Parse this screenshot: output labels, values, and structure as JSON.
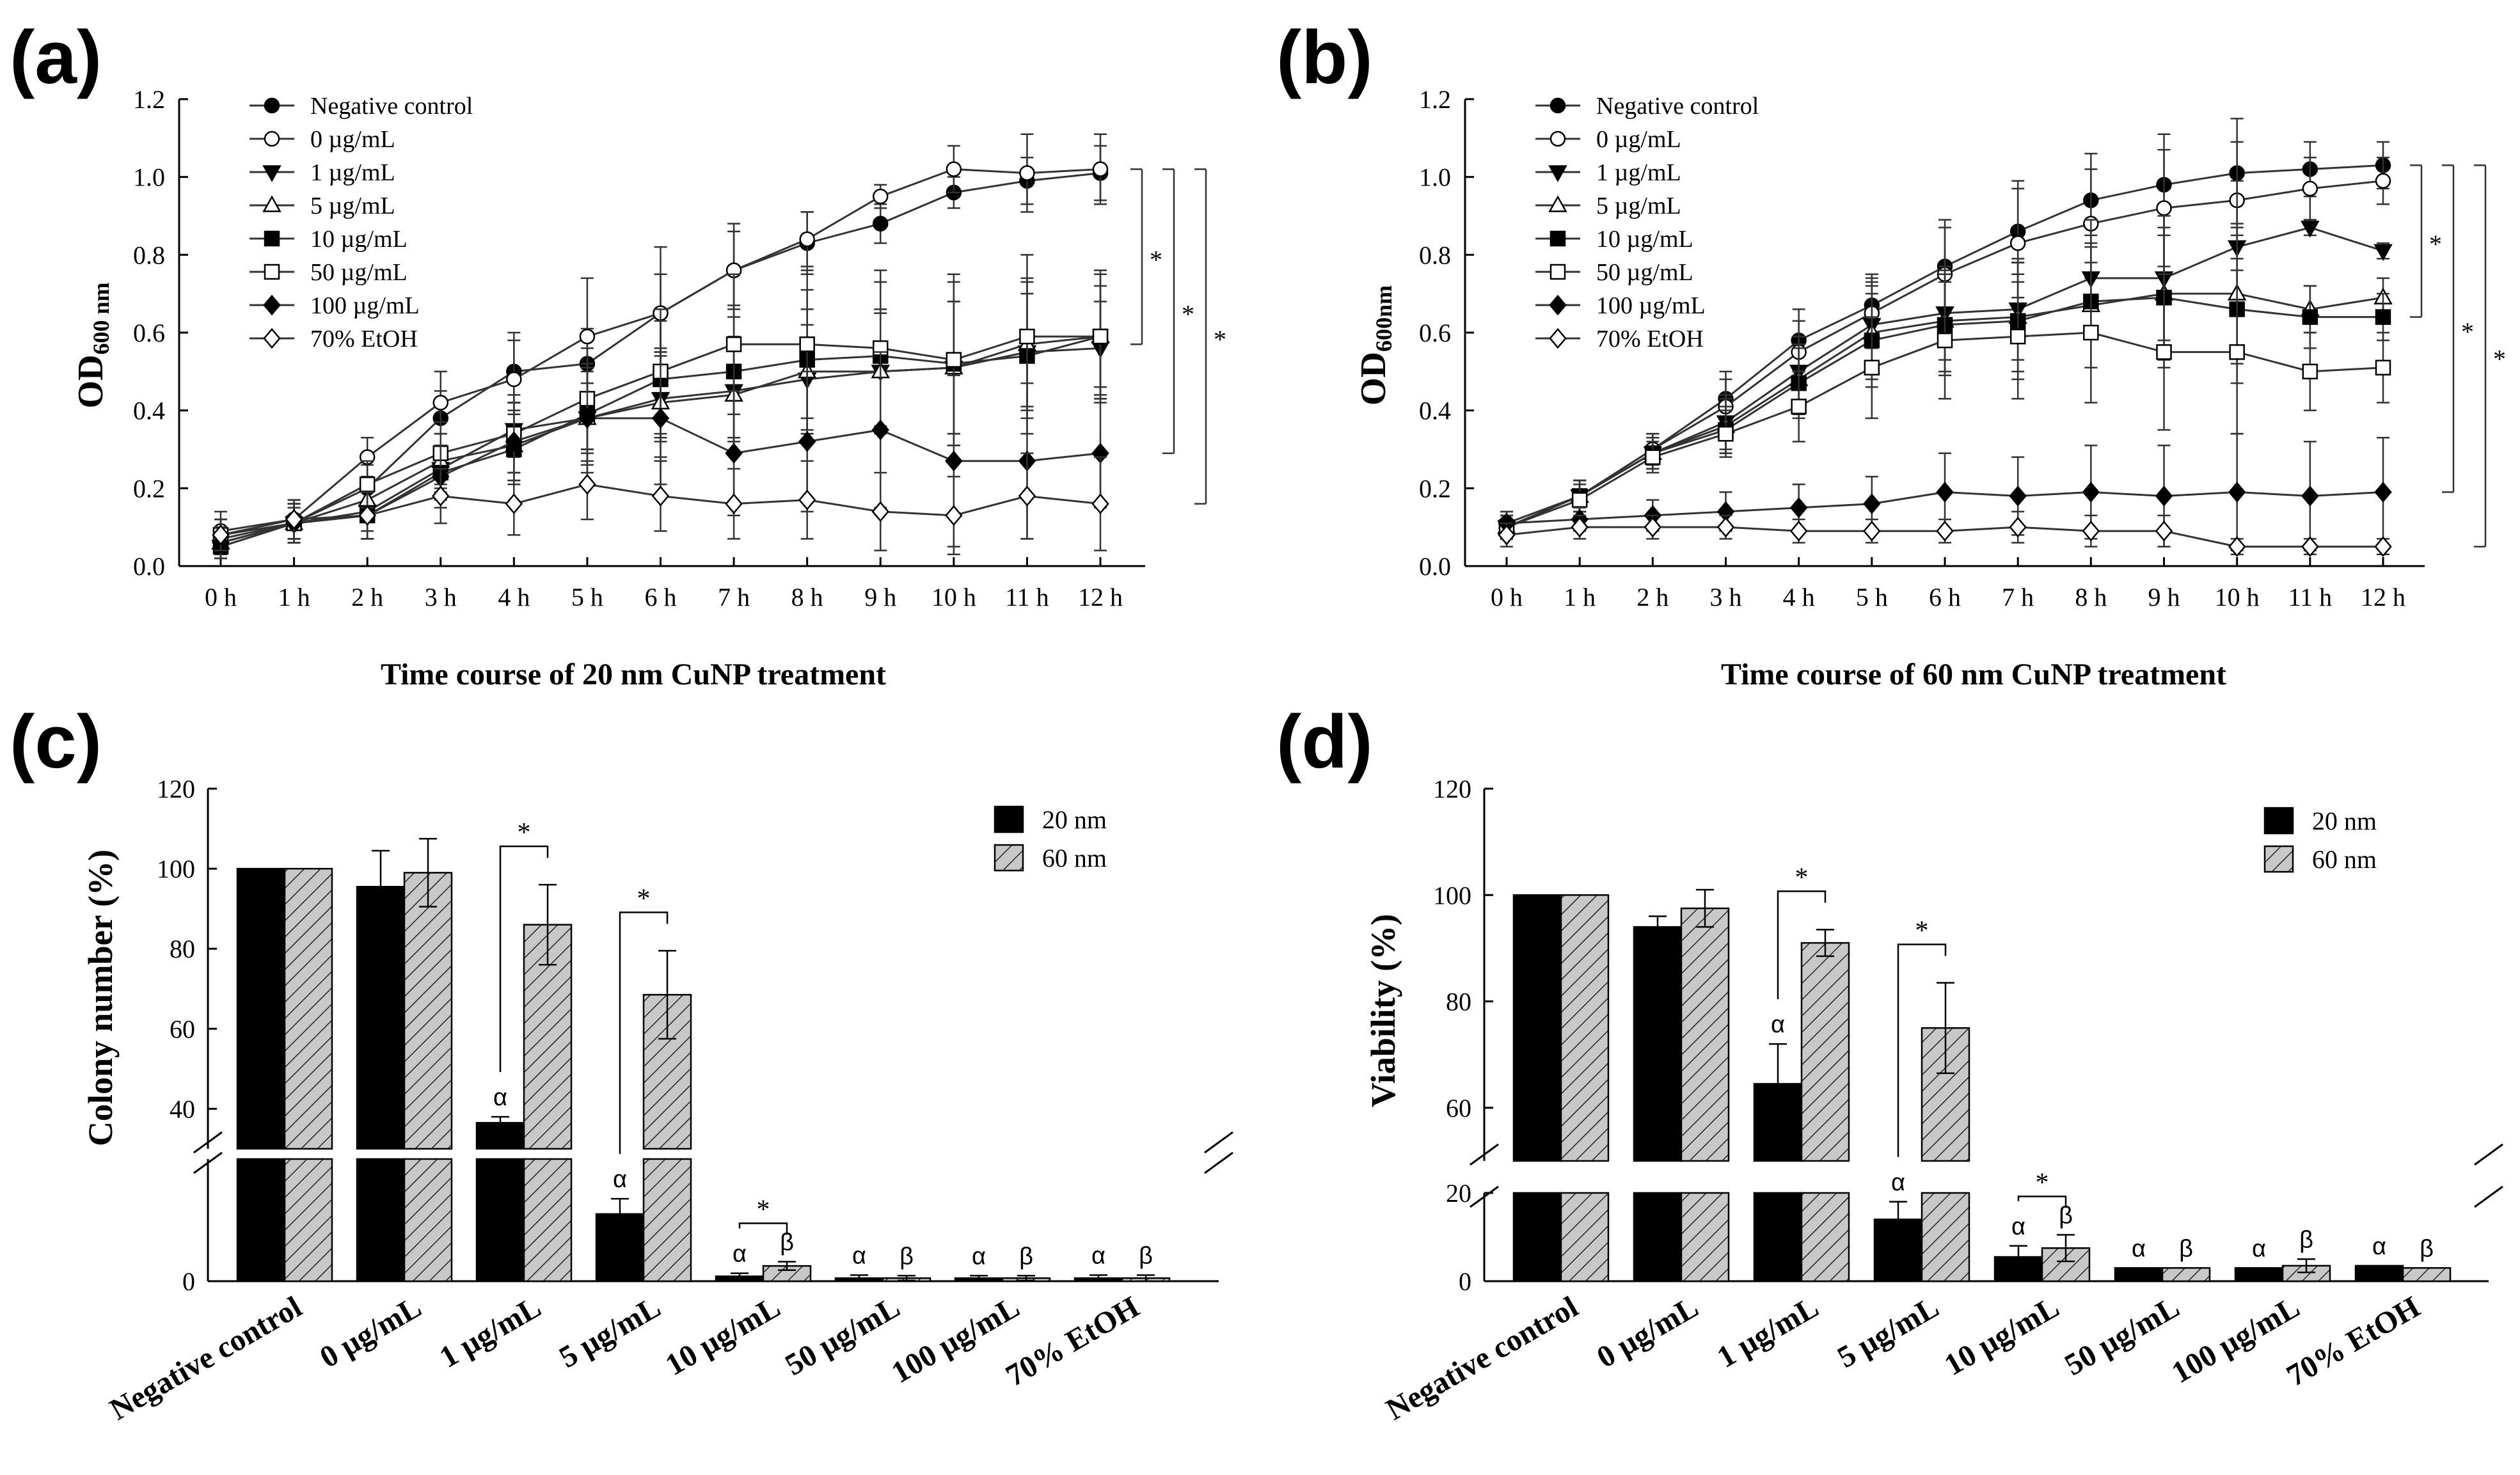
{
  "panels": {
    "a": "(a)",
    "b": "(b)",
    "c": "(c)",
    "d": "(d)"
  },
  "chart_data": [
    {
      "id": "a",
      "type": "line",
      "title": "",
      "xlabel": "Time course of 20 nm CuNP treatment",
      "ylabel_main": "OD",
      "ylabel_sub": "600 nm",
      "categories": [
        "0 h",
        "1 h",
        "2 h",
        "3 h",
        "4 h",
        "5 h",
        "6 h",
        "7 h",
        "8 h",
        "9 h",
        "10 h",
        "11 h",
        "12 h"
      ],
      "ylim": [
        0,
        1.2
      ],
      "yticks": [
        "0.0",
        "0.2",
        "0.4",
        "0.6",
        "0.8",
        "1.0",
        "1.2"
      ],
      "significance": [
        "*",
        "*",
        "*"
      ],
      "series": [
        {
          "name": "Negative control",
          "marker": "circle",
          "fill": "black",
          "values": [
            0.07,
            0.11,
            0.2,
            0.38,
            0.5,
            0.52,
            0.65,
            0.76,
            0.83,
            0.88,
            0.96,
            0.99,
            1.01
          ],
          "errors": [
            0.03,
            0.04,
            0.06,
            0.07,
            0.08,
            0.09,
            0.1,
            0.1,
            0.08,
            0.05,
            0.04,
            0.06,
            0.07
          ]
        },
        {
          "name": "0 µg/mL",
          "marker": "circle",
          "fill": "white",
          "values": [
            0.09,
            0.12,
            0.28,
            0.42,
            0.48,
            0.59,
            0.65,
            0.76,
            0.84,
            0.95,
            1.02,
            1.01,
            1.02
          ],
          "errors": [
            0.05,
            0.05,
            0.05,
            0.08,
            0.12,
            0.15,
            0.17,
            0.12,
            0.07,
            0.03,
            0.06,
            0.1,
            0.09
          ]
        },
        {
          "name": "1 µg/mL",
          "marker": "triangle-down",
          "fill": "black",
          "values": [
            0.05,
            0.11,
            0.14,
            0.25,
            0.35,
            0.38,
            0.43,
            0.45,
            0.48,
            0.5,
            0.51,
            0.55,
            0.56
          ],
          "errors": [
            0.03,
            0.04,
            0.05,
            0.06,
            0.07,
            0.09,
            0.11,
            0.13,
            0.14,
            0.15,
            0.17,
            0.15,
            0.12
          ]
        },
        {
          "name": "5 µg/mL",
          "marker": "triangle-up",
          "fill": "white",
          "values": [
            0.06,
            0.11,
            0.17,
            0.27,
            0.31,
            0.38,
            0.42,
            0.44,
            0.5,
            0.5,
            0.51,
            0.57,
            0.59
          ],
          "errors": [
            0.03,
            0.04,
            0.05,
            0.07,
            0.09,
            0.12,
            0.14,
            0.15,
            0.16,
            0.16,
            0.17,
            0.16,
            0.13
          ]
        },
        {
          "name": "10 µg/mL",
          "marker": "square",
          "fill": "black",
          "values": [
            0.05,
            0.11,
            0.13,
            0.24,
            0.3,
            0.39,
            0.48,
            0.5,
            0.53,
            0.54,
            0.52,
            0.54,
            0.59
          ],
          "errors": [
            0.03,
            0.05,
            0.06,
            0.07,
            0.09,
            0.12,
            0.15,
            0.17,
            0.18,
            0.19,
            0.21,
            0.2,
            0.16
          ]
        },
        {
          "name": "50 µg/mL",
          "marker": "square",
          "fill": "white",
          "values": [
            0.08,
            0.11,
            0.21,
            0.29,
            0.34,
            0.43,
            0.5,
            0.57,
            0.57,
            0.56,
            0.53,
            0.59,
            0.59
          ],
          "errors": [
            0.04,
            0.05,
            0.06,
            0.08,
            0.1,
            0.13,
            0.16,
            0.18,
            0.19,
            0.2,
            0.22,
            0.21,
            0.17
          ]
        },
        {
          "name": "100 µg/mL",
          "marker": "diamond",
          "fill": "black",
          "values": [
            0.06,
            0.11,
            0.13,
            0.23,
            0.32,
            0.38,
            0.38,
            0.29,
            0.32,
            0.35,
            0.27,
            0.27,
            0.29
          ],
          "errors": [
            0.04,
            0.05,
            0.06,
            0.08,
            0.1,
            0.14,
            0.17,
            0.16,
            0.18,
            0.2,
            0.22,
            0.2,
            0.14
          ]
        },
        {
          "name": "70% EtOH",
          "marker": "diamond",
          "fill": "white",
          "values": [
            0.08,
            0.12,
            0.13,
            0.18,
            0.16,
            0.21,
            0.18,
            0.16,
            0.17,
            0.14,
            0.13,
            0.18,
            0.16
          ],
          "errors": [
            0.04,
            0.05,
            0.06,
            0.07,
            0.08,
            0.09,
            0.09,
            0.09,
            0.1,
            0.1,
            0.1,
            0.11,
            0.12
          ]
        }
      ]
    },
    {
      "id": "b",
      "type": "line",
      "title": "",
      "xlabel": "Time course of 60 nm CuNP treatment",
      "ylabel_main": "OD",
      "ylabel_sub": "600nm",
      "categories": [
        "0 h",
        "1 h",
        "2 h",
        "3 h",
        "4 h",
        "5 h",
        "6 h",
        "7 h",
        "8 h",
        "9 h",
        "10 h",
        "11 h",
        "12 h"
      ],
      "ylim": [
        0,
        1.2
      ],
      "yticks": [
        "0.0",
        "0.2",
        "0.4",
        "0.6",
        "0.8",
        "1.0",
        "1.2"
      ],
      "significance": [
        "*",
        "*",
        "*"
      ],
      "series": [
        {
          "name": "Negative control",
          "marker": "circle",
          "fill": "black",
          "values": [
            0.11,
            0.18,
            0.3,
            0.43,
            0.58,
            0.67,
            0.77,
            0.86,
            0.94,
            0.98,
            1.01,
            1.02,
            1.03
          ],
          "errors": [
            0.03,
            0.04,
            0.04,
            0.07,
            0.08,
            0.08,
            0.12,
            0.13,
            0.12,
            0.13,
            0.14,
            0.07,
            0.06
          ]
        },
        {
          "name": "0 µg/mL",
          "marker": "circle",
          "fill": "white",
          "values": [
            0.1,
            0.18,
            0.3,
            0.41,
            0.55,
            0.65,
            0.75,
            0.83,
            0.88,
            0.92,
            0.94,
            0.97,
            0.99
          ],
          "errors": [
            0.03,
            0.04,
            0.04,
            0.07,
            0.08,
            0.09,
            0.12,
            0.14,
            0.14,
            0.15,
            0.15,
            0.08,
            0.06
          ]
        },
        {
          "name": "1 µg/mL",
          "marker": "triangle-down",
          "fill": "black",
          "values": [
            0.1,
            0.18,
            0.29,
            0.37,
            0.5,
            0.62,
            0.65,
            0.66,
            0.74,
            0.74,
            0.82,
            0.87,
            0.81
          ],
          "errors": [
            0.03,
            0.04,
            0.04,
            0.07,
            0.09,
            0.11,
            0.12,
            0.13,
            0.15,
            0.16,
            0.17,
            0.02,
            0.02
          ]
        },
        {
          "name": "5 µg/mL",
          "marker": "triangle-up",
          "fill": "white",
          "values": [
            0.1,
            0.18,
            0.29,
            0.36,
            0.48,
            0.6,
            0.63,
            0.64,
            0.67,
            0.7,
            0.7,
            0.66,
            0.69
          ],
          "errors": [
            0.03,
            0.04,
            0.04,
            0.07,
            0.09,
            0.12,
            0.13,
            0.14,
            0.16,
            0.17,
            0.18,
            0.06,
            0.05
          ]
        },
        {
          "name": "10 µg/mL",
          "marker": "square",
          "fill": "black",
          "values": [
            0.1,
            0.18,
            0.29,
            0.35,
            0.47,
            0.58,
            0.62,
            0.63,
            0.68,
            0.69,
            0.66,
            0.64,
            0.64
          ],
          "errors": [
            0.03,
            0.04,
            0.04,
            0.06,
            0.09,
            0.12,
            0.13,
            0.15,
            0.17,
            0.18,
            0.19,
            0.08,
            0.06
          ]
        },
        {
          "name": "50 µg/mL",
          "marker": "square",
          "fill": "white",
          "values": [
            0.1,
            0.17,
            0.28,
            0.34,
            0.41,
            0.51,
            0.58,
            0.59,
            0.6,
            0.55,
            0.55,
            0.5,
            0.51
          ],
          "errors": [
            0.03,
            0.04,
            0.04,
            0.06,
            0.09,
            0.13,
            0.15,
            0.16,
            0.18,
            0.2,
            0.21,
            0.1,
            0.09
          ]
        },
        {
          "name": "100 µg/mL",
          "marker": "diamond",
          "fill": "black",
          "values": [
            0.11,
            0.12,
            0.13,
            0.14,
            0.15,
            0.16,
            0.19,
            0.18,
            0.19,
            0.18,
            0.19,
            0.18,
            0.19
          ],
          "errors": [
            0.03,
            0.03,
            0.04,
            0.05,
            0.06,
            0.07,
            0.1,
            0.1,
            0.12,
            0.13,
            0.15,
            0.14,
            0.14
          ]
        },
        {
          "name": "70% EtOH",
          "marker": "diamond",
          "fill": "white",
          "values": [
            0.08,
            0.1,
            0.1,
            0.1,
            0.09,
            0.09,
            0.09,
            0.1,
            0.09,
            0.09,
            0.05,
            0.05,
            0.05
          ],
          "errors": [
            0.03,
            0.03,
            0.03,
            0.03,
            0.03,
            0.03,
            0.03,
            0.04,
            0.04,
            0.04,
            0.02,
            0.02,
            0.02
          ]
        }
      ]
    },
    {
      "id": "c",
      "type": "bar",
      "title": "",
      "xlabel": "",
      "ylabel": "Colony number (%)",
      "categories": [
        "Negative control",
        "0 µg/mL",
        "1 µg/mL",
        "5 µg/mL",
        "10 µg/mL",
        "50 µg/mL",
        "100 µg/mL",
        "70% EtOH"
      ],
      "axis_break": {
        "lower": [
          0,
          20
        ],
        "upper": [
          30,
          120
        ]
      },
      "yticks_upper": [
        "40",
        "60",
        "80",
        "100",
        "120"
      ],
      "yticks_lower": [
        "0"
      ],
      "series": [
        {
          "name": "20 nm",
          "fill": "black",
          "values": [
            100,
            95.5,
            36.5,
            11,
            0.8,
            0.5,
            0.5,
            0.5
          ],
          "errors": [
            0,
            9,
            1.5,
            2.5,
            0.5,
            0.5,
            0.4,
            0.5
          ]
        },
        {
          "name": "60 nm",
          "fill": "hatched",
          "values": [
            100,
            99,
            86,
            68.5,
            2.5,
            0.5,
            0.5,
            0.5
          ],
          "errors": [
            0,
            8.5,
            10,
            11,
            0.7,
            0.4,
            0.4,
            0.5
          ]
        }
      ],
      "annotations": {
        "20 nm": [
          "",
          "",
          "α",
          "α",
          "α",
          "α",
          "α",
          "α"
        ],
        "60 nm": [
          "",
          "",
          "",
          "",
          "β",
          "β",
          "β",
          "β"
        ],
        "significant_pairs": [
          {
            "category": "1 µg/mL",
            "label": "*"
          },
          {
            "category": "5 µg/mL",
            "label": "*"
          },
          {
            "category": "10 µg/mL",
            "label": "*"
          }
        ]
      }
    },
    {
      "id": "d",
      "type": "bar",
      "title": "",
      "xlabel": "",
      "ylabel": "Viability (%)",
      "categories": [
        "Negative control",
        "0 µg/mL",
        "1 µg/mL",
        "5 µg/mL",
        "10 µg/mL",
        "50 µg/mL",
        "100 µg/mL",
        "70% EtOH"
      ],
      "axis_break": {
        "lower": [
          0,
          20
        ],
        "upper": [
          50,
          120
        ]
      },
      "yticks_upper": [
        "60",
        "80",
        "100",
        "120"
      ],
      "yticks_lower": [
        "0",
        "20"
      ],
      "series": [
        {
          "name": "20 nm",
          "fill": "black",
          "values": [
            100,
            94,
            64.5,
            14,
            5.5,
            3,
            3,
            3.5
          ],
          "errors": [
            0,
            2,
            7.5,
            4,
            2.5,
            0,
            0,
            0
          ]
        },
        {
          "name": "60 nm",
          "fill": "hatched",
          "values": [
            100,
            97.5,
            91,
            75,
            7.5,
            3,
            3.5,
            3
          ],
          "errors": [
            0,
            3.5,
            2.5,
            8.5,
            3,
            0,
            1.5,
            0
          ]
        }
      ],
      "annotations": {
        "20 nm": [
          "",
          "",
          "α",
          "α",
          "α",
          "α",
          "α",
          "α"
        ],
        "60 nm": [
          "",
          "",
          "",
          "",
          "β",
          "β",
          "β",
          "β"
        ],
        "significant_pairs": [
          {
            "category": "1 µg/mL",
            "label": "*"
          },
          {
            "category": "5 µg/mL",
            "label": "*"
          },
          {
            "category": "10 µg/mL",
            "label": "*"
          }
        ]
      }
    }
  ]
}
